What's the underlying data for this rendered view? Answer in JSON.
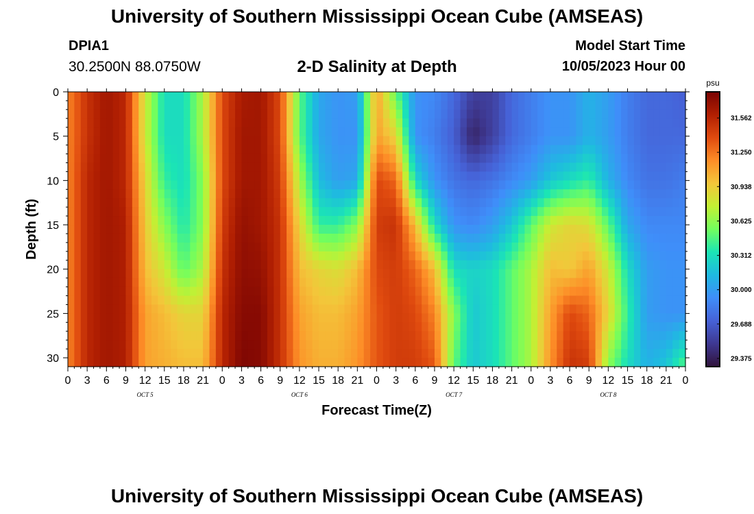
{
  "page": {
    "title": "University of Southern Mississippi Ocean Cube (AMSEAS)",
    "station_id": "DPIA1",
    "coords": "30.2500N  88.0750W",
    "plot_title": "2-D Salinity at Depth",
    "model_start_label": "Model Start Time",
    "model_start_value": "10/05/2023 Hour 00",
    "footer_title": "University of Southern Mississippi Ocean Cube (AMSEAS)"
  },
  "chart_data": {
    "type": "heatmap",
    "title": "2-D Salinity at Depth",
    "xlabel": "Forecast Time(Z)",
    "ylabel": "Depth (ft)",
    "x_ticks": [
      "0",
      "3",
      "6",
      "9",
      "12",
      "15",
      "18",
      "21",
      "0",
      "3",
      "6",
      "9",
      "12",
      "15",
      "18",
      "21",
      "0",
      "3",
      "6",
      "9",
      "12",
      "15",
      "18",
      "21",
      "0",
      "3",
      "6",
      "9",
      "12",
      "15",
      "18",
      "21",
      "0"
    ],
    "x_range_hours": [
      0,
      96
    ],
    "day_labels": [
      {
        "hour": 12,
        "label": "OCT 5"
      },
      {
        "hour": 36,
        "label": "OCT 6"
      },
      {
        "hour": 60,
        "label": "OCT 7"
      },
      {
        "hour": 84,
        "label": "OCT 8"
      }
    ],
    "y_ticks": [
      "0",
      "5",
      "10",
      "15",
      "20",
      "25",
      "30"
    ],
    "y_range_ft": [
      0,
      31
    ],
    "colorbar": {
      "unit": "psu",
      "min": 29.3,
      "max": 31.8,
      "ticks": [
        "31.562",
        "31.250",
        "30.938",
        "30.625",
        "30.312",
        "30.000",
        "29.688",
        "29.375"
      ],
      "stops": [
        "#30123b",
        "#3e3891",
        "#4662d7",
        "#3f8ef9",
        "#1fb9e1",
        "#1be5b5",
        "#72fe5e",
        "#c2f034",
        "#f3c63a",
        "#fd8d27",
        "#e04b0f",
        "#b11f02",
        "#7a0403"
      ]
    },
    "time_hours": [
      0,
      3,
      6,
      9,
      12,
      15,
      18,
      21,
      24,
      27,
      30,
      33,
      36,
      39,
      42,
      45,
      48,
      51,
      54,
      57,
      60,
      63,
      66,
      69,
      72,
      75,
      78,
      81,
      84,
      87,
      90,
      93,
      96
    ],
    "depth_ft": [
      0,
      5,
      10,
      15,
      20,
      25,
      31
    ],
    "salinity_psu": [
      [
        31.2,
        31.5,
        31.65,
        31.55,
        30.8,
        30.3,
        30.3,
        30.7,
        31.4,
        31.62,
        31.65,
        31.4,
        30.5,
        30.05,
        29.95,
        30.0,
        31.1,
        30.5,
        29.95,
        29.9,
        29.75,
        29.55,
        29.55,
        29.75,
        29.85,
        29.95,
        29.95,
        30.1,
        30.0,
        29.85,
        29.75,
        29.75,
        29.7
      ],
      [
        31.2,
        31.5,
        31.65,
        31.55,
        30.8,
        30.3,
        30.3,
        30.7,
        31.4,
        31.65,
        31.65,
        31.4,
        30.5,
        30.05,
        29.95,
        29.95,
        31.1,
        30.9,
        29.95,
        29.85,
        29.7,
        29.4,
        29.55,
        29.75,
        29.85,
        29.95,
        29.95,
        30.1,
        30.0,
        29.85,
        29.75,
        29.75,
        29.75
      ],
      [
        31.2,
        31.55,
        31.65,
        31.55,
        30.9,
        30.4,
        30.3,
        30.6,
        31.4,
        31.65,
        31.65,
        31.45,
        30.7,
        30.15,
        30.0,
        30.05,
        31.4,
        31.3,
        30.3,
        29.95,
        29.8,
        29.75,
        29.8,
        29.9,
        30.0,
        30.2,
        30.3,
        30.4,
        30.1,
        29.9,
        29.8,
        29.8,
        29.85
      ],
      [
        31.2,
        31.55,
        31.65,
        31.6,
        30.95,
        30.6,
        30.35,
        30.6,
        31.45,
        31.7,
        31.65,
        31.5,
        30.9,
        30.4,
        30.4,
        30.6,
        31.45,
        31.5,
        31.0,
        30.3,
        29.95,
        29.9,
        30.0,
        30.2,
        30.5,
        30.8,
        30.9,
        30.85,
        30.5,
        30.05,
        29.9,
        29.9,
        29.9
      ],
      [
        31.2,
        31.55,
        31.65,
        31.6,
        31.0,
        30.8,
        30.5,
        30.7,
        31.5,
        31.72,
        31.7,
        31.5,
        31.0,
        30.9,
        30.85,
        31.0,
        31.4,
        31.45,
        31.3,
        31.0,
        30.3,
        30.25,
        30.3,
        30.5,
        30.7,
        31.0,
        30.95,
        31.1,
        30.8,
        30.3,
        30.0,
        29.95,
        29.95
      ],
      [
        31.2,
        31.55,
        31.65,
        31.6,
        31.1,
        31.0,
        30.9,
        30.9,
        31.55,
        31.75,
        31.75,
        31.5,
        31.1,
        31.0,
        31.0,
        31.1,
        31.35,
        31.45,
        31.4,
        31.2,
        30.6,
        30.2,
        30.3,
        30.5,
        30.7,
        31.1,
        31.4,
        31.3,
        30.9,
        30.4,
        30.0,
        29.95,
        29.95
      ],
      [
        31.2,
        31.55,
        31.65,
        31.6,
        31.1,
        31.05,
        31.0,
        31.0,
        31.55,
        31.78,
        31.75,
        31.5,
        31.15,
        31.05,
        31.05,
        31.15,
        31.35,
        31.45,
        31.45,
        31.35,
        30.5,
        30.2,
        30.3,
        30.5,
        30.7,
        31.15,
        31.5,
        31.45,
        30.6,
        30.3,
        30.1,
        30.2,
        30.5
      ]
    ]
  }
}
